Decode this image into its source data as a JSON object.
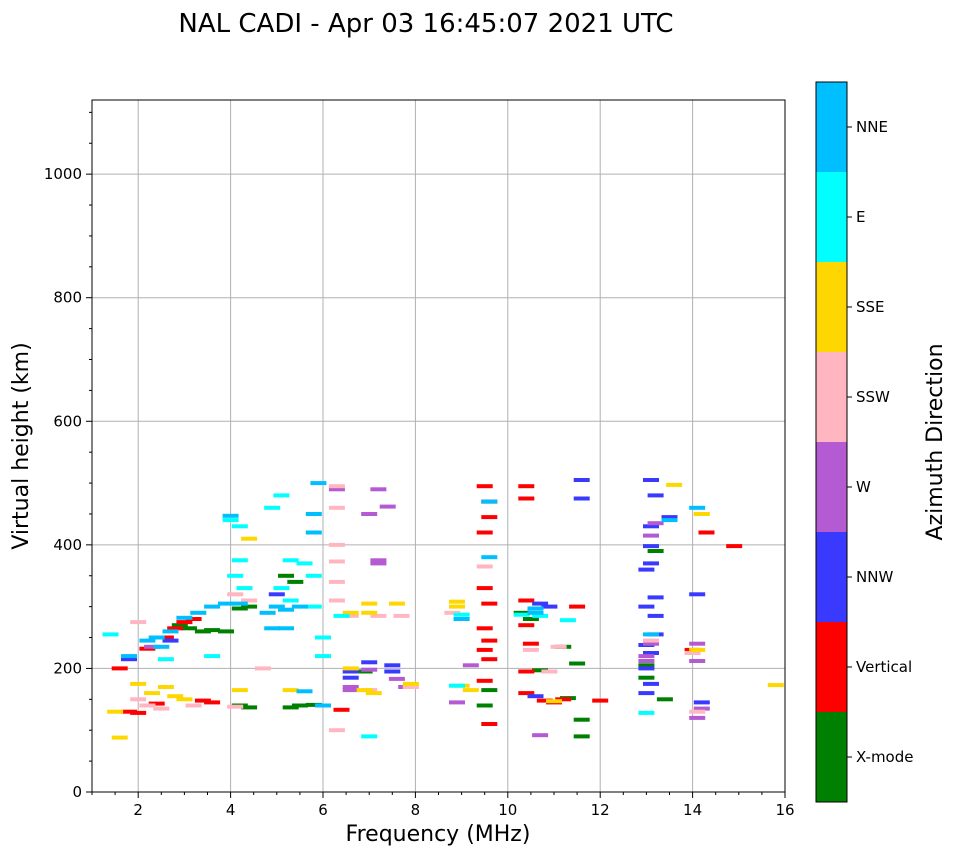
{
  "chart_data": {
    "type": "scatter",
    "title": "NAL CADI - Apr 03 16:45:07 2021 UTC",
    "xlabel": "Frequency (MHz)",
    "ylabel": "Virtual height (km)",
    "xlim": [
      1,
      16
    ],
    "ylim": [
      0,
      1120
    ],
    "xticks": [
      2,
      4,
      6,
      8,
      10,
      12,
      14,
      16
    ],
    "yticks": [
      0,
      200,
      400,
      600,
      800,
      1000
    ],
    "grid": true,
    "colorbar": {
      "label": "Azimuth Direction",
      "categories": [
        {
          "name": "X-mode",
          "color": "#008000"
        },
        {
          "name": "Vertical",
          "color": "#ff0000"
        },
        {
          "name": "NNW",
          "color": "#3a3aff"
        },
        {
          "name": "W",
          "color": "#b45ad2"
        },
        {
          "name": "SSW",
          "color": "#ffb6c1"
        },
        {
          "name": "SSE",
          "color": "#ffd700"
        },
        {
          "name": "E",
          "color": "#00ffff"
        },
        {
          "name": "NNE",
          "color": "#00bfff"
        }
      ]
    },
    "series": [
      {
        "name": "X-mode",
        "points": [
          [
            2.9,
            270
          ],
          [
            3.1,
            265
          ],
          [
            3.4,
            260
          ],
          [
            3.6,
            262
          ],
          [
            3.9,
            260
          ],
          [
            4.2,
            297
          ],
          [
            4.4,
            300
          ],
          [
            4.2,
            140
          ],
          [
            4.4,
            137
          ],
          [
            5.2,
            350
          ],
          [
            5.4,
            340
          ],
          [
            5.3,
            137
          ],
          [
            5.5,
            140
          ],
          [
            5.8,
            141
          ],
          [
            6.9,
            195
          ],
          [
            9.5,
            140
          ],
          [
            9.6,
            165
          ],
          [
            10.3,
            290
          ],
          [
            10.5,
            280
          ],
          [
            10.7,
            197
          ],
          [
            11.2,
            235
          ],
          [
            11.5,
            208
          ],
          [
            11.6,
            117
          ],
          [
            11.6,
            90
          ],
          [
            11.3,
            152
          ],
          [
            13.0,
            205
          ],
          [
            13.0,
            185
          ],
          [
            13.2,
            390
          ],
          [
            13.4,
            150
          ]
        ]
      },
      {
        "name": "Vertical",
        "points": [
          [
            1.6,
            200
          ],
          [
            1.8,
            130
          ],
          [
            2.0,
            128
          ],
          [
            2.4,
            143
          ],
          [
            2.2,
            232
          ],
          [
            2.6,
            250
          ],
          [
            2.8,
            265
          ],
          [
            3.0,
            275
          ],
          [
            3.2,
            280
          ],
          [
            3.4,
            148
          ],
          [
            3.6,
            145
          ],
          [
            6.4,
            133
          ],
          [
            9.5,
            495
          ],
          [
            9.6,
            470
          ],
          [
            9.6,
            445
          ],
          [
            9.5,
            420
          ],
          [
            9.5,
            330
          ],
          [
            9.6,
            305
          ],
          [
            9.5,
            265
          ],
          [
            9.6,
            245
          ],
          [
            9.5,
            230
          ],
          [
            9.6,
            215
          ],
          [
            9.5,
            180
          ],
          [
            9.6,
            110
          ],
          [
            10.4,
            495
          ],
          [
            10.4,
            475
          ],
          [
            10.4,
            310
          ],
          [
            10.4,
            270
          ],
          [
            10.5,
            240
          ],
          [
            10.4,
            195
          ],
          [
            10.4,
            160
          ],
          [
            10.8,
            148
          ],
          [
            11.0,
            145
          ],
          [
            11.2,
            150
          ],
          [
            11.5,
            300
          ],
          [
            12.0,
            148
          ],
          [
            14.3,
            420
          ],
          [
            14.9,
            398
          ],
          [
            14.0,
            230
          ]
        ]
      },
      {
        "name": "NNW",
        "points": [
          [
            1.8,
            215
          ],
          [
            2.7,
            245
          ],
          [
            5.0,
            320
          ],
          [
            6.6,
            195
          ],
          [
            6.6,
            185
          ],
          [
            7.0,
            210
          ],
          [
            7.5,
            205
          ],
          [
            7.5,
            195
          ],
          [
            10.7,
            305
          ],
          [
            10.9,
            300
          ],
          [
            10.6,
            155
          ],
          [
            11.6,
            505
          ],
          [
            11.6,
            475
          ],
          [
            13.1,
            505
          ],
          [
            13.2,
            480
          ],
          [
            13.1,
            430
          ],
          [
            13.1,
            398
          ],
          [
            13.1,
            370
          ],
          [
            13.0,
            360
          ],
          [
            13.2,
            315
          ],
          [
            13.0,
            300
          ],
          [
            13.2,
            285
          ],
          [
            13.2,
            255
          ],
          [
            13.0,
            238
          ],
          [
            13.1,
            225
          ],
          [
            13.0,
            200
          ],
          [
            13.1,
            175
          ],
          [
            13.0,
            160
          ],
          [
            13.5,
            445
          ],
          [
            14.1,
            320
          ],
          [
            14.2,
            145
          ]
        ]
      },
      {
        "name": "W",
        "points": [
          [
            2.3,
            235
          ],
          [
            6.3,
            490
          ],
          [
            6.6,
            170
          ],
          [
            6.6,
            165
          ],
          [
            7.0,
            198
          ],
          [
            7.6,
            183
          ],
          [
            7.8,
            170
          ],
          [
            7.2,
            375
          ],
          [
            7.2,
            370
          ],
          [
            7.2,
            490
          ],
          [
            7.4,
            462
          ],
          [
            7.0,
            450
          ],
          [
            8.9,
            145
          ],
          [
            9.2,
            205
          ],
          [
            10.7,
            92
          ],
          [
            13.2,
            435
          ],
          [
            13.1,
            415
          ],
          [
            13.1,
            240
          ],
          [
            13.0,
            220
          ],
          [
            13.0,
            212
          ],
          [
            14.1,
            240
          ],
          [
            14.1,
            212
          ],
          [
            14.2,
            135
          ],
          [
            14.1,
            120
          ]
        ]
      },
      {
        "name": "SSW",
        "points": [
          [
            2.0,
            275
          ],
          [
            2.0,
            150
          ],
          [
            2.2,
            140
          ],
          [
            2.5,
            135
          ],
          [
            3.2,
            140
          ],
          [
            4.1,
            138
          ],
          [
            4.4,
            310
          ],
          [
            4.1,
            320
          ],
          [
            4.7,
            200
          ],
          [
            6.3,
            495
          ],
          [
            6.3,
            460
          ],
          [
            6.3,
            400
          ],
          [
            6.3,
            373
          ],
          [
            6.3,
            340
          ],
          [
            6.3,
            310
          ],
          [
            6.3,
            100
          ],
          [
            6.6,
            285
          ],
          [
            7.0,
            165
          ],
          [
            7.2,
            285
          ],
          [
            7.7,
            285
          ],
          [
            7.9,
            170
          ],
          [
            8.8,
            290
          ],
          [
            9.5,
            365
          ],
          [
            10.5,
            230
          ],
          [
            10.9,
            195
          ],
          [
            11.1,
            235
          ],
          [
            13.1,
            245
          ],
          [
            14.0,
            225
          ],
          [
            14.1,
            130
          ]
        ]
      },
      {
        "name": "SSE",
        "points": [
          [
            1.6,
            88
          ],
          [
            1.5,
            130
          ],
          [
            2.0,
            175
          ],
          [
            2.3,
            160
          ],
          [
            2.6,
            170
          ],
          [
            2.8,
            155
          ],
          [
            3.0,
            150
          ],
          [
            4.2,
            165
          ],
          [
            4.4,
            410
          ],
          [
            5.3,
            165
          ],
          [
            6.6,
            290
          ],
          [
            6.6,
            200
          ],
          [
            6.9,
            165
          ],
          [
            7.0,
            305
          ],
          [
            7.0,
            290
          ],
          [
            7.1,
            160
          ],
          [
            7.6,
            305
          ],
          [
            7.9,
            175
          ],
          [
            8.9,
            308
          ],
          [
            8.9,
            300
          ],
          [
            9.0,
            172
          ],
          [
            9.2,
            165
          ],
          [
            11.0,
            147
          ],
          [
            13.6,
            497
          ],
          [
            14.2,
            450
          ],
          [
            14.1,
            230
          ],
          [
            15.8,
            173
          ]
        ]
      },
      {
        "name": "E",
        "points": [
          [
            1.4,
            255
          ],
          [
            2.6,
            215
          ],
          [
            3.6,
            220
          ],
          [
            4.0,
            440
          ],
          [
            4.2,
            430
          ],
          [
            4.2,
            375
          ],
          [
            4.1,
            350
          ],
          [
            4.3,
            330
          ],
          [
            4.9,
            460
          ],
          [
            5.1,
            480
          ],
          [
            5.3,
            375
          ],
          [
            5.1,
            330
          ],
          [
            5.3,
            310
          ],
          [
            5.6,
            370
          ],
          [
            5.8,
            350
          ],
          [
            5.8,
            300
          ],
          [
            6.0,
            250
          ],
          [
            6.0,
            220
          ],
          [
            6.4,
            285
          ],
          [
            7.0,
            90
          ],
          [
            8.9,
            172
          ],
          [
            9.0,
            280
          ],
          [
            9.0,
            287
          ],
          [
            10.3,
            287
          ],
          [
            10.7,
            285
          ],
          [
            11.3,
            278
          ],
          [
            13.0,
            128
          ]
        ]
      },
      {
        "name": "NNE",
        "points": [
          [
            1.8,
            220
          ],
          [
            2.2,
            245
          ],
          [
            2.4,
            250
          ],
          [
            2.5,
            235
          ],
          [
            2.7,
            260
          ],
          [
            3.0,
            282
          ],
          [
            3.3,
            290
          ],
          [
            3.6,
            300
          ],
          [
            3.9,
            305
          ],
          [
            4.2,
            305
          ],
          [
            4.0,
            447
          ],
          [
            4.8,
            290
          ],
          [
            4.9,
            265
          ],
          [
            5.0,
            300
          ],
          [
            5.2,
            295
          ],
          [
            5.2,
            265
          ],
          [
            5.5,
            300
          ],
          [
            5.6,
            163
          ],
          [
            5.8,
            420
          ],
          [
            5.8,
            450
          ],
          [
            5.9,
            500
          ],
          [
            6.0,
            140
          ],
          [
            9.0,
            280
          ],
          [
            9.6,
            470
          ],
          [
            9.6,
            380
          ],
          [
            10.6,
            297
          ],
          [
            10.6,
            290
          ],
          [
            13.1,
            255
          ],
          [
            13.5,
            440
          ],
          [
            14.1,
            460
          ]
        ]
      }
    ]
  }
}
